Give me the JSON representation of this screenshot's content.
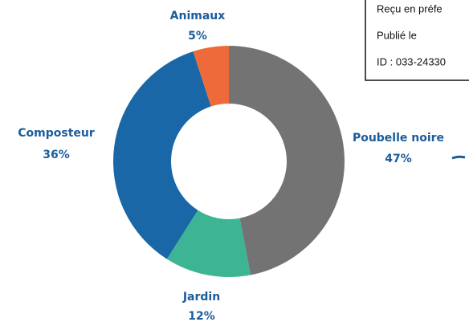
{
  "chart_data": {
    "type": "pie",
    "categories": [
      "Poubelle noire",
      "Jardin",
      "Composteur",
      "Animaux"
    ],
    "values": [
      47,
      12,
      36,
      5
    ],
    "value_labels": [
      "47%",
      "12%",
      "36%",
      "5%"
    ],
    "colors": [
      "#737373",
      "#3db594",
      "#1967a6",
      "#ee6a3a"
    ]
  },
  "stamp": {
    "lines": [
      "Reçu en préfe",
      "Publié le",
      "ID : 033-24330"
    ]
  }
}
